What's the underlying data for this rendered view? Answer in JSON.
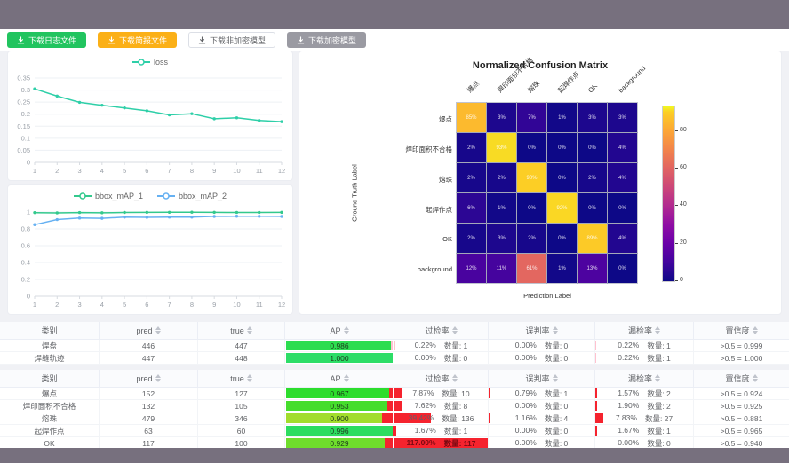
{
  "toolbar": {
    "buttons": [
      {
        "label": "下载日志文件",
        "variant": "green"
      },
      {
        "label": "下载简报文件",
        "variant": "orange"
      },
      {
        "label": "下载非加密模型",
        "variant": "plain"
      },
      {
        "label": "下载加密模型",
        "variant": "gray"
      }
    ]
  },
  "colors": {
    "topbar": "#77707e",
    "loss_line": "#2ecfa8",
    "map1_line": "#33c98d",
    "map2_line": "#66b1f2",
    "table_bar_red": "#f5232e",
    "table_bar_pink": "#ffc2cf"
  },
  "chart_data": [
    {
      "type": "line",
      "legend": [
        "loss"
      ],
      "x": [
        1,
        2,
        3,
        4,
        5,
        6,
        7,
        8,
        9,
        10,
        11,
        12
      ],
      "series": [
        {
          "name": "loss",
          "color": "#2ecfa8",
          "values": [
            0.305,
            0.275,
            0.249,
            0.237,
            0.226,
            0.214,
            0.197,
            0.202,
            0.181,
            0.185,
            0.174,
            0.169
          ]
        }
      ],
      "ylim": [
        0,
        0.35
      ],
      "yticks": [
        "0",
        "0.05",
        "0.1",
        "0.15",
        "0.2",
        "0.25",
        "0.3",
        "0.35"
      ],
      "grid": true,
      "legend_position": "top"
    },
    {
      "type": "line",
      "legend": [
        "bbox_mAP_1",
        "bbox_mAP_2"
      ],
      "x": [
        1,
        2,
        3,
        4,
        5,
        6,
        7,
        8,
        9,
        10,
        11,
        12
      ],
      "series": [
        {
          "name": "bbox_mAP_1",
          "color": "#33c98d",
          "values": [
            0.993,
            0.99,
            0.994,
            0.991,
            0.995,
            0.996,
            0.997,
            0.998,
            0.996,
            0.995,
            0.995,
            0.996
          ]
        },
        {
          "name": "bbox_mAP_2",
          "color": "#66b1f2",
          "values": [
            0.85,
            0.91,
            0.928,
            0.925,
            0.939,
            0.937,
            0.94,
            0.94,
            0.948,
            0.95,
            0.949,
            0.948
          ]
        }
      ],
      "ylim": [
        0,
        1
      ],
      "yticks": [
        "0",
        "0.2",
        "0.4",
        "0.6",
        "0.8",
        "1"
      ],
      "grid": true,
      "legend_position": "top"
    },
    {
      "type": "heatmap",
      "title": "Normalized Confusion Matrix",
      "xlabel": "Prediction Label",
      "ylabel": "Ground Truth Label",
      "x_labels": [
        "爆点",
        "焊印面积不合格",
        "熔珠",
        "起焊作点",
        "OK",
        "background"
      ],
      "y_labels": [
        "爆点",
        "焊印面积不合格",
        "熔珠",
        "起焊作点",
        "OK",
        "background"
      ],
      "unit": "%",
      "values": [
        [
          85,
          3,
          7,
          1,
          3,
          3
        ],
        [
          2,
          93,
          0,
          0,
          0,
          4
        ],
        [
          2,
          2,
          90,
          0,
          2,
          4
        ],
        [
          6,
          1,
          0,
          92,
          0,
          0
        ],
        [
          2,
          3,
          2,
          0,
          89,
          4
        ],
        [
          12,
          11,
          61,
          1,
          13,
          0
        ]
      ],
      "vmax": 93,
      "colorbar_ticks": [
        0,
        20,
        40,
        60,
        80
      ],
      "colormap": "plasma"
    }
  ],
  "tables": [
    {
      "bar_tone": "pink",
      "headers": [
        {
          "label": "类别",
          "sortable": false
        },
        {
          "label": "pred",
          "sortable": true
        },
        {
          "label": "true",
          "sortable": true
        },
        {
          "label": "AP",
          "sortable": true
        },
        {
          "label": "过检率",
          "sortable": true
        },
        {
          "label": "误判率",
          "sortable": true
        },
        {
          "label": "漏检率",
          "sortable": true
        },
        {
          "label": "置信度",
          "sortable": true
        }
      ],
      "rows": [
        {
          "cls": "焊盘",
          "pred": "446",
          "true": "447",
          "ap": "0.986",
          "ap_val": 0.986,
          "gj_rate": "0.22%",
          "gj_count": "数量: 1",
          "gj_pct": 0.22,
          "wp_rate": "0.00%",
          "wp_count": "数量: 0",
          "wp_pct": 0,
          "lj_rate": "0.22%",
          "lj_count": "数量: 1",
          "lj_pct": 0.22,
          "conf": ">0.5 = 0.999"
        },
        {
          "cls": "焊缝轨迹",
          "pred": "447",
          "true": "448",
          "ap": "1.000",
          "ap_val": 1.0,
          "gj_rate": "0.00%",
          "gj_count": "数量: 0",
          "gj_pct": 0,
          "wp_rate": "0.00%",
          "wp_count": "数量: 0",
          "wp_pct": 0,
          "lj_rate": "0.22%",
          "lj_count": "数量: 1",
          "lj_pct": 0.22,
          "conf": ">0.5 = 1.000"
        }
      ]
    },
    {
      "bar_tone": "red",
      "headers": [
        {
          "label": "类别",
          "sortable": false
        },
        {
          "label": "pred",
          "sortable": true
        },
        {
          "label": "true",
          "sortable": true
        },
        {
          "label": "AP",
          "sortable": true
        },
        {
          "label": "过检率",
          "sortable": true
        },
        {
          "label": "误判率",
          "sortable": true
        },
        {
          "label": "漏检率",
          "sortable": true
        },
        {
          "label": "置信度",
          "sortable": true
        }
      ],
      "rows": [
        {
          "cls": "爆点",
          "pred": "152",
          "true": "127",
          "ap": "0.967",
          "ap_val": 0.967,
          "gj_rate": "7.87%",
          "gj_count": "数量: 10",
          "gj_pct": 7.87,
          "wp_rate": "0.79%",
          "wp_count": "数量: 1",
          "wp_pct": 0.79,
          "lj_rate": "1.57%",
          "lj_count": "数量: 2",
          "lj_pct": 1.57,
          "conf": ">0.5 = 0.924"
        },
        {
          "cls": "焊印面积不合格",
          "pred": "132",
          "true": "105",
          "ap": "0.953",
          "ap_val": 0.953,
          "gj_rate": "7.62%",
          "gj_count": "数量: 8",
          "gj_pct": 7.62,
          "wp_rate": "0.00%",
          "wp_count": "数量: 0",
          "wp_pct": 0,
          "lj_rate": "1.90%",
          "lj_count": "数量: 2",
          "lj_pct": 1.9,
          "conf": ">0.5 = 0.925"
        },
        {
          "cls": "熔珠",
          "pred": "479",
          "true": "346",
          "ap": "0.900",
          "ap_val": 0.9,
          "gj_rate": "39.42%",
          "gj_count": "数量: 136",
          "gj_pct": 39.42,
          "wp_rate": "1.16%",
          "wp_count": "数量: 4",
          "wp_pct": 1.16,
          "lj_rate": "7.83%",
          "lj_count": "数量: 27",
          "lj_pct": 7.83,
          "conf": ">0.5 = 0.881"
        },
        {
          "cls": "起焊作点",
          "pred": "63",
          "true": "60",
          "ap": "0.996",
          "ap_val": 0.996,
          "gj_rate": "1.67%",
          "gj_count": "数量: 1",
          "gj_pct": 1.67,
          "wp_rate": "0.00%",
          "wp_count": "数量: 0",
          "wp_pct": 0,
          "lj_rate": "1.67%",
          "lj_count": "数量: 1",
          "lj_pct": 1.67,
          "conf": ">0.5 = 0.965"
        },
        {
          "cls": "OK",
          "pred": "117",
          "true": "100",
          "ap": "0.929",
          "ap_val": 0.929,
          "gj_rate": "117.00%",
          "gj_count": "数量: 117",
          "gj_pct": 117,
          "wp_rate": "0.00%",
          "wp_count": "数量: 0",
          "wp_pct": 0,
          "lj_rate": "0.00%",
          "lj_count": "数量: 0",
          "lj_pct": 0,
          "conf": ">0.5 = 0.940"
        }
      ]
    }
  ]
}
